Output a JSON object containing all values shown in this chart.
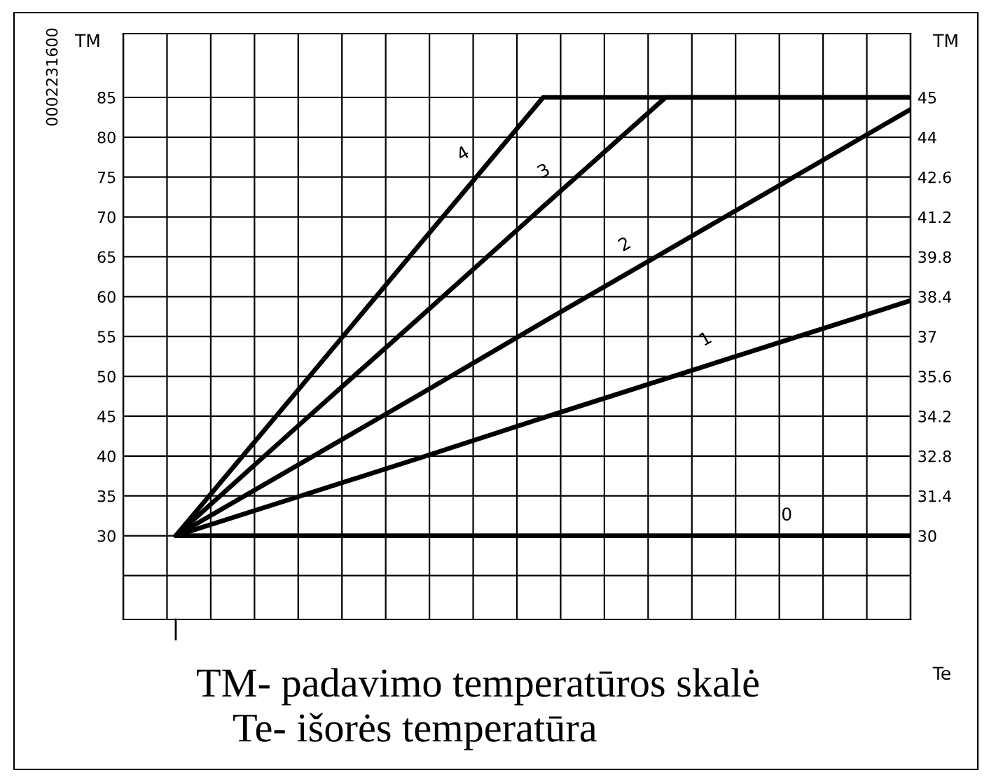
{
  "chart_data": {
    "type": "line",
    "ylabel": "TM",
    "y2label": "TM",
    "xlabel": "Te",
    "categories": [
      null,
      null,
      null,
      null,
      null,
      null,
      null
    ],
    "series": [
      {
        "name": "0",
        "color": "#000000",
        "values": [
          30,
          30,
          30,
          30,
          30,
          30,
          30
        ]
      },
      {
        "name": "1",
        "color": "#000000",
        "values": [
          30,
          34.9,
          39.8,
          44.8,
          49.7,
          54.6,
          59.5
        ]
      },
      {
        "name": "2",
        "color": "#000000",
        "values": [
          30,
          38.9,
          47.8,
          56.8,
          65.7,
          74.6,
          83.5
        ]
      },
      {
        "name": "3",
        "color": "#000000",
        "values": [
          30,
          43.8,
          57.5,
          71.3,
          85,
          85,
          85
        ]
      },
      {
        "name": "4",
        "color": "#000000",
        "values": [
          30,
          48.3,
          66.7,
          85,
          85,
          85,
          85
        ]
      }
    ],
    "ylim": [
      19.5,
      93
    ],
    "yticks": [
      {
        "value": 25,
        "label": null
      },
      30,
      35,
      40,
      45,
      50,
      55,
      60,
      65,
      70,
      75,
      80,
      85
    ],
    "grid": true,
    "legend": false,
    "marker": "none",
    "line_style": "solid",
    "annotations": [
      "0002231600",
      "30",
      "31.4",
      "32.8",
      "34.2",
      "35.6",
      "37",
      "38.4",
      "39.8",
      "41.2",
      "42.6",
      "44",
      "45",
      "TM- padavimo temperatūros skalė",
      "Te- išorės temperatūra"
    ]
  }
}
